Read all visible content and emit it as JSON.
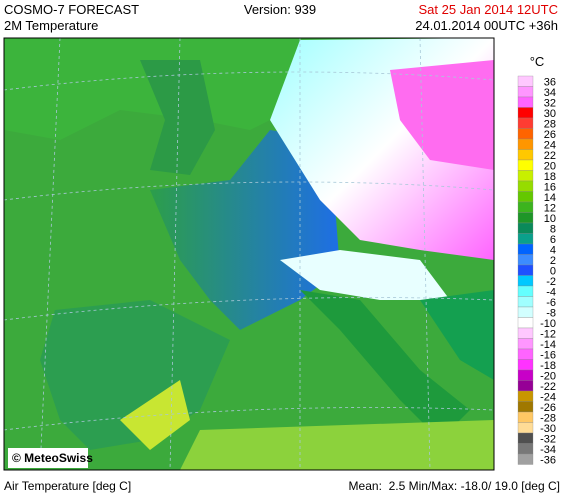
{
  "header": {
    "product": "COSMO-7 FORECAST",
    "version": "Version: 939",
    "valid_time": "Sat 25 Jan 2014 12UTC",
    "field": "2M Temperature",
    "run": "24.01.2014 00UTC +36h"
  },
  "legend": {
    "unit": "°C",
    "labels": [
      36,
      34,
      32,
      30,
      28,
      26,
      24,
      22,
      20,
      18,
      16,
      14,
      12,
      10,
      8,
      6,
      4,
      2,
      0,
      -2,
      -4,
      -6,
      -8,
      -10,
      -12,
      -14,
      -16,
      -18,
      -20,
      -22,
      -24,
      -26,
      -28,
      -30,
      -32,
      -34,
      -36
    ],
    "colors": [
      "#ffc8ff",
      "#ff96ff",
      "#ff64ff",
      "#ff0000",
      "#ff3c32",
      "#ff6400",
      "#ff9600",
      "#ffc800",
      "#ffff00",
      "#c8f000",
      "#96dc00",
      "#64c800",
      "#3cb41e",
      "#1e9628",
      "#0a8a5a",
      "#0aa08c",
      "#0064ff",
      "#3c8cff",
      "#1e50ff",
      "#00c8ff",
      "#64ffff",
      "#a0ffff",
      "#d2ffff",
      "#ffffff",
      "#ffc8ff",
      "#ff96ff",
      "#ff64ff",
      "#ff32ff",
      "#c800c8",
      "#960096",
      "#c89600",
      "#a07800",
      "#ffc864",
      "#ffdc96",
      "#505050",
      "#787878",
      "#a0a0a0"
    ]
  },
  "credit": "© MeteoSwiss",
  "footer": {
    "left": "Air Temperature [deg C]",
    "right": "Mean:  2.5 Min/Max: -18.0/ 19.0 [deg C]"
  }
}
